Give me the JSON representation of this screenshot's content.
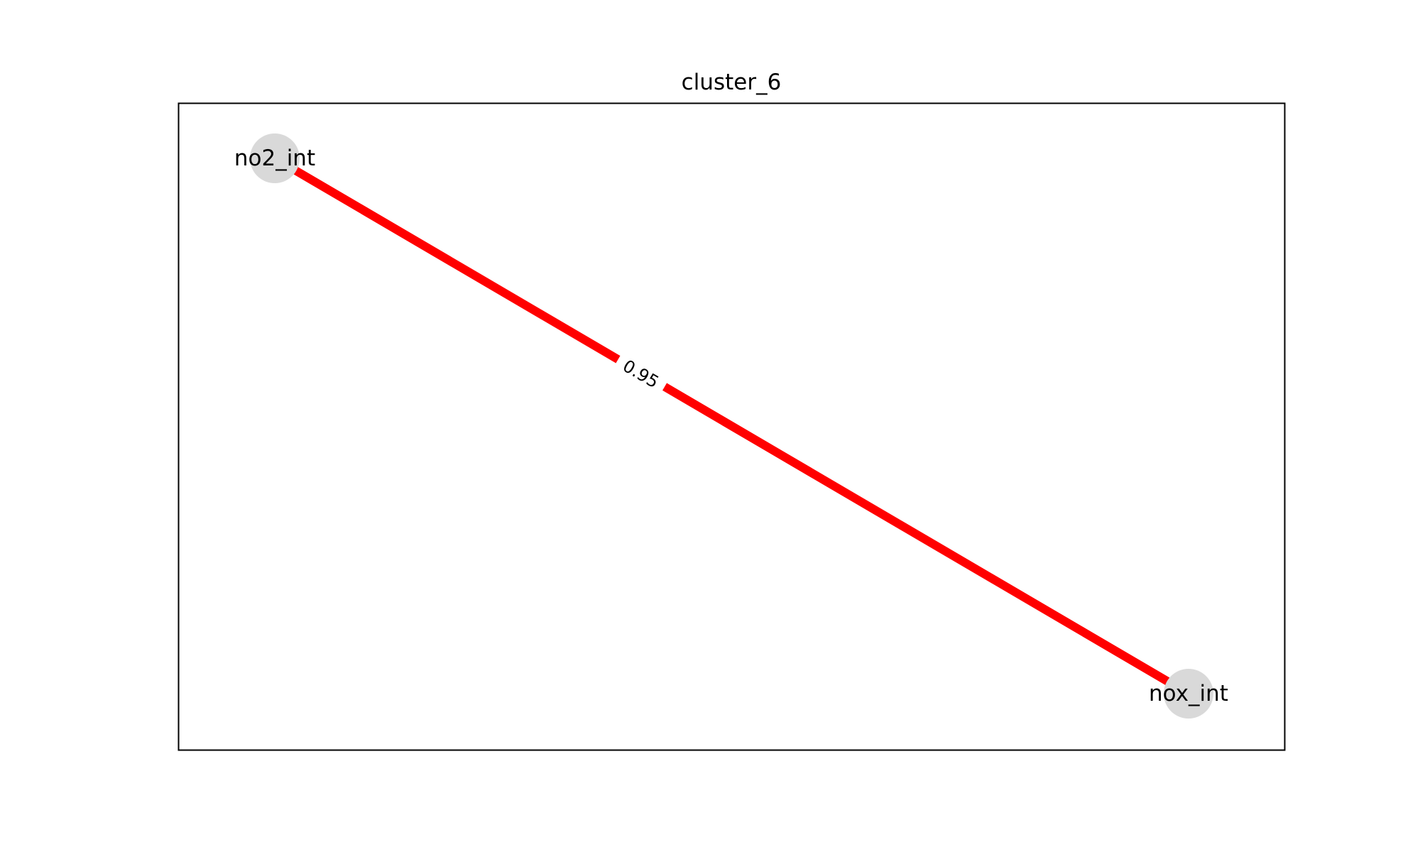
{
  "title": "cluster_6",
  "colors": {
    "edge": "#ff0000",
    "node": "#d9d9d9",
    "frame": "#000000",
    "background": "#ffffff"
  },
  "nodes": [
    {
      "id": "no2_int",
      "label": "no2_int"
    },
    {
      "id": "nox_int",
      "label": "nox_int"
    }
  ],
  "edges": [
    {
      "source": "no2_int",
      "target": "nox_int",
      "weight": 0.95,
      "label": "0.95"
    }
  ]
}
